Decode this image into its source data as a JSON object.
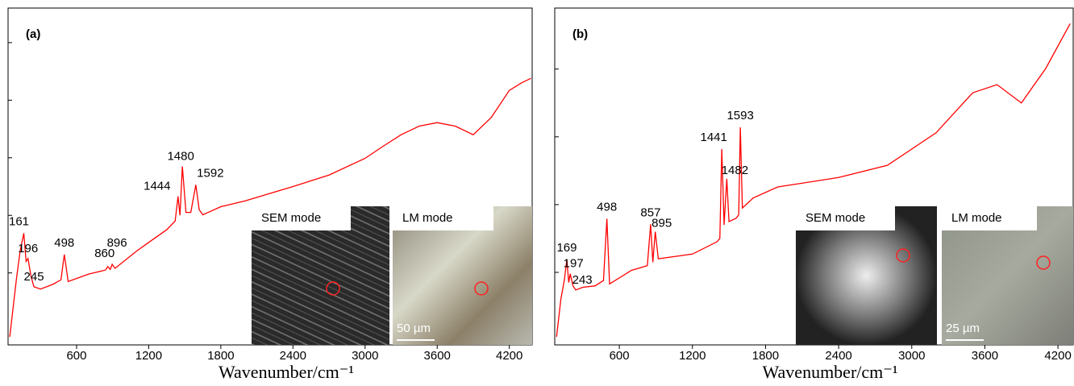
{
  "chart_data": [
    {
      "type": "line",
      "panel_label": "(a)",
      "x_label": "Wavenumber/cm⁻¹",
      "x": [
        44,
        100,
        131,
        161,
        180,
        196,
        220,
        245,
        300,
        400,
        470,
        498,
        530,
        700,
        840,
        860,
        880,
        896,
        920,
        1100,
        1200,
        1350,
        1420,
        1444,
        1460,
        1480,
        1510,
        1550,
        1592,
        1620,
        1650,
        1800,
        2000,
        2400,
        2700,
        3000,
        3150,
        3300,
        3450,
        3600,
        3750,
        3900,
        4050,
        4200,
        4300,
        4380
      ],
      "series": [
        {
          "color": "#ff0000",
          "values": [
            -0.11,
            0.9,
            1.39,
            1.69,
            1.2,
            1.25,
            0.95,
            0.76,
            0.72,
            0.8,
            0.88,
            1.32,
            0.85,
            0.98,
            1.05,
            1.11,
            1.06,
            1.15,
            1.08,
            1.38,
            1.53,
            1.75,
            1.9,
            2.33,
            2.0,
            2.85,
            2.05,
            2.05,
            2.53,
            2.1,
            2.01,
            2.15,
            2.25,
            2.5,
            2.7,
            2.99,
            3.2,
            3.4,
            3.55,
            3.61,
            3.55,
            3.4,
            3.7,
            4.17,
            4.3,
            4.38
          ]
        }
      ],
      "xlim": [
        30,
        4390
      ],
      "xticks": [
        600,
        1200,
        1800,
        2400,
        3000,
        3600,
        4200
      ],
      "ylim": [
        -0.25,
        5.6
      ],
      "yticks": [
        1,
        2,
        3,
        4,
        5
      ],
      "peaks": [
        161,
        196,
        245,
        498,
        860,
        896,
        1444,
        1480,
        1592
      ],
      "insets": [
        {
          "label": "SEM mode"
        },
        {
          "label": "LM mode",
          "scale_bar": "50 µm"
        }
      ]
    },
    {
      "type": "line",
      "panel_label": "(b)",
      "x_label": "Wavenumber/cm⁻¹",
      "x": [
        85,
        120,
        150,
        169,
        185,
        197,
        220,
        243,
        300,
        400,
        470,
        498,
        520,
        700,
        830,
        857,
        875,
        895,
        920,
        1200,
        1400,
        1425,
        1441,
        1460,
        1482,
        1500,
        1560,
        1580,
        1593,
        1610,
        1700,
        1900,
        2400,
        2800,
        3200,
        3500,
        3700,
        3900,
        4100,
        4300
      ],
      "series": [
        {
          "color": "#ff0000",
          "values": [
            0.05,
            0.6,
            0.9,
            1.19,
            0.85,
            0.98,
            0.8,
            0.74,
            0.78,
            0.8,
            0.88,
            1.79,
            0.83,
            1.03,
            1.1,
            1.71,
            1.15,
            1.6,
            1.2,
            1.27,
            1.45,
            1.5,
            2.82,
            1.7,
            2.38,
            1.75,
            1.8,
            1.85,
            3.14,
            1.95,
            2.1,
            2.26,
            2.4,
            2.58,
            3.06,
            3.65,
            3.77,
            3.5,
            4.01,
            4.67
          ]
        }
      ],
      "xlim": [
        70,
        4325
      ],
      "xticks": [
        600,
        1200,
        1800,
        2400,
        3000,
        3600,
        4200
      ],
      "ylim": [
        -0.07,
        4.9
      ],
      "yticks": [
        1,
        2,
        3,
        4
      ],
      "peaks": [
        169,
        197,
        243,
        498,
        857,
        895,
        1441,
        1482,
        1593
      ],
      "insets": [
        {
          "label": "SEM mode"
        },
        {
          "label": "LM mode",
          "scale_bar": "25 µm"
        }
      ]
    }
  ]
}
